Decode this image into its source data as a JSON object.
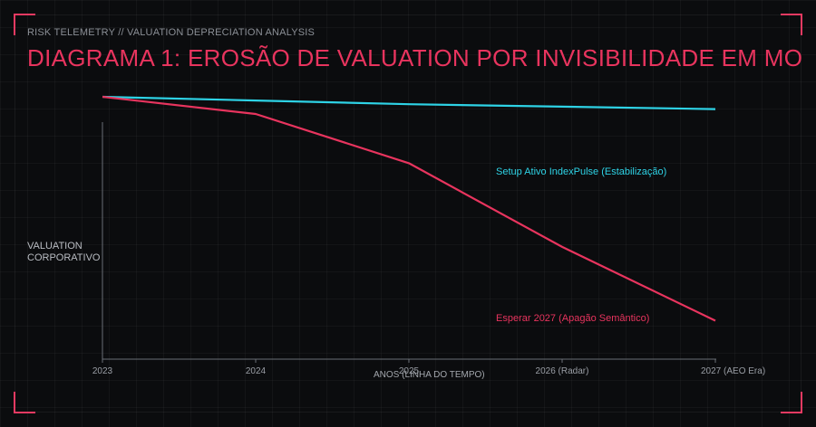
{
  "header": {
    "subtitle": "RISK TELEMETRY // VALUATION DEPRECIATION ANALYSIS",
    "title": "DIAGRAMA 1: EROSÃO DE VALUATION POR INVISIBILIDADE EM MO"
  },
  "colors": {
    "accent": "#e8345e",
    "cyan": "#2ed3e6",
    "background": "#0b0c0e"
  },
  "chart_data": {
    "type": "line",
    "title": "DIAGRAMA 1: EROSÃO DE VALUATION POR INVISIBILIDADE EM MO",
    "xlabel": "ANOS (LINHA DO TEMPO)",
    "ylabel": "VALUATION CORPORATIVO",
    "categories": [
      "2023",
      "2024",
      "2025",
      "2026 (Radar)",
      "2027 (AEO Era)"
    ],
    "ylim": [
      0,
      100
    ],
    "grid": true,
    "legend": "inline-annotations",
    "series": [
      {
        "name": "Setup Ativo IndexPulse (Estabilização)",
        "color": "#2ed3e6",
        "values": [
          100,
          98.5,
          97,
          96,
          95
        ]
      },
      {
        "name": "Esperar 2027 (Apagão Semântico)",
        "color": "#e8345e",
        "values": [
          100,
          93,
          73,
          39,
          9
        ]
      }
    ]
  }
}
